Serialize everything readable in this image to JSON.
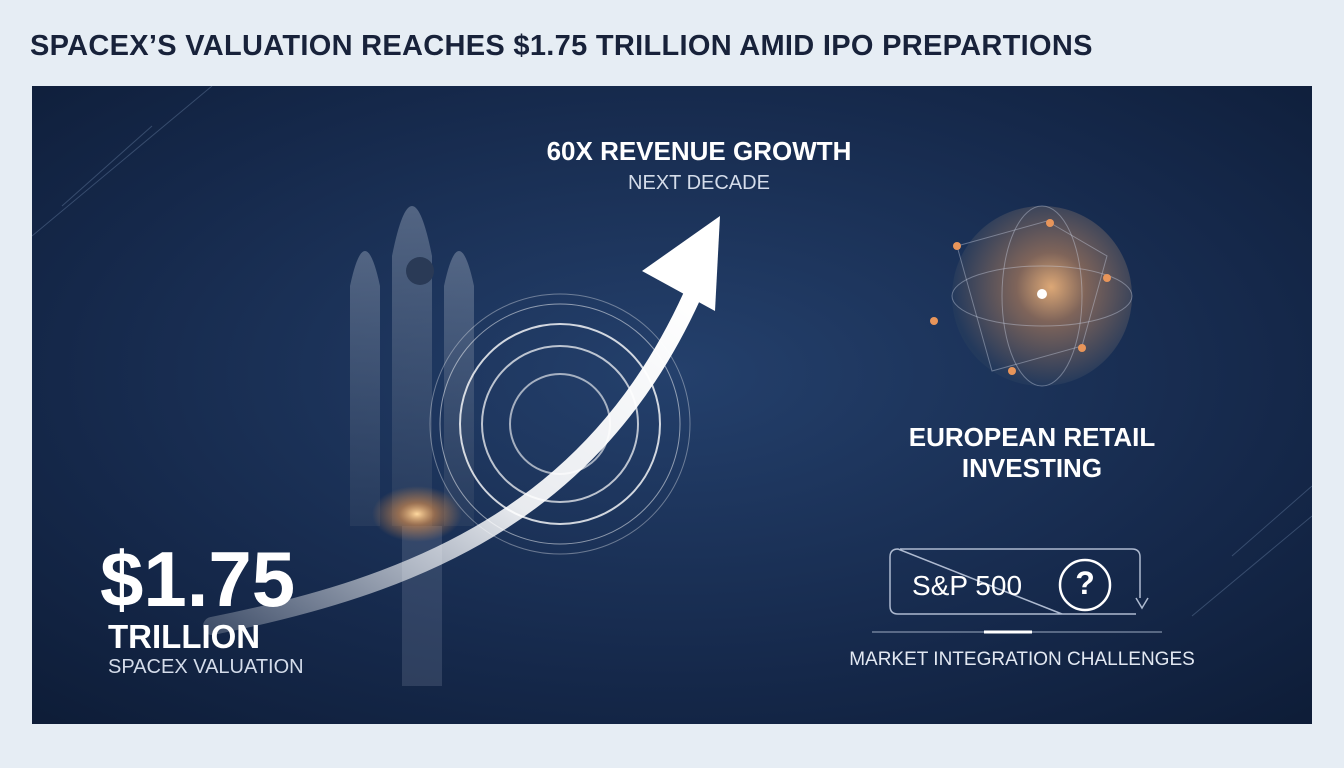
{
  "header": {
    "title": "SPACEX’S VALUATION REACHES $1.75 TRILLION AMID IPO PREPARTIONS"
  },
  "growth": {
    "headline": "60X REVENUE GROWTH",
    "sub": "NEXT DECADE"
  },
  "europe": {
    "label": "EUROPEAN RETAIL INVESTING"
  },
  "valuation": {
    "amount": "$1.75",
    "unit": "TRILLION",
    "caption": "SPACEX VALUATION"
  },
  "market": {
    "index": "S&P 500",
    "icon": "?",
    "caption": "MARKET INTEGRATION CHALLENGES"
  }
}
